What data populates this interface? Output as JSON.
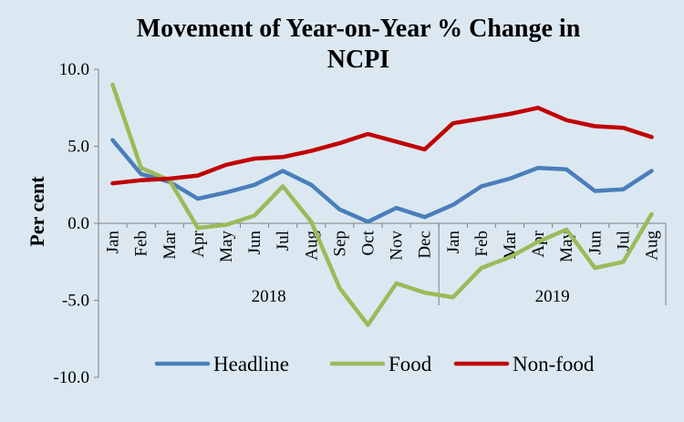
{
  "chart_data": {
    "type": "line",
    "title_lines": [
      "Movement of Year-on-Year % Change in",
      "NCPI"
    ],
    "ylabel": "Per cent",
    "xlabel": "",
    "ylim": [
      -10,
      10
    ],
    "yticks": [
      10,
      5,
      0,
      -5,
      -10
    ],
    "ytick_labels": [
      "10.0",
      "5.0",
      "0.0",
      "-5.0",
      "-10.0"
    ],
    "categories": [
      "Jan",
      "Feb",
      "Mar",
      "Apr",
      "May",
      "Jun",
      "Jul",
      "Aug",
      "Sep",
      "Oct",
      "Nov",
      "Dec",
      "Jan",
      "Feb",
      "Mar",
      "Apr",
      "May",
      "Jun",
      "Jul",
      "Aug"
    ],
    "year_groups": [
      {
        "label": "2018",
        "start": 0,
        "end": 11
      },
      {
        "label": "2019",
        "start": 12,
        "end": 19
      }
    ],
    "series": [
      {
        "name": "Headline",
        "color": "#4a7ebb",
        "values": [
          5.4,
          3.2,
          2.7,
          1.6,
          2.0,
          2.5,
          3.4,
          2.5,
          0.9,
          0.1,
          1.0,
          0.4,
          1.2,
          2.4,
          2.9,
          3.6,
          3.5,
          2.1,
          2.2,
          3.4
        ]
      },
      {
        "name": "Food",
        "color": "#9bbb59",
        "values": [
          9.0,
          3.6,
          2.8,
          -0.3,
          -0.1,
          0.5,
          2.4,
          0.1,
          -4.2,
          -6.6,
          -3.9,
          -4.5,
          -4.8,
          -2.9,
          -2.2,
          -1.2,
          -0.4,
          -2.9,
          -2.5,
          0.6
        ]
      },
      {
        "name": "Non-food",
        "color": "#c00000",
        "values": [
          2.6,
          2.8,
          2.9,
          3.1,
          3.8,
          4.2,
          4.3,
          4.7,
          5.2,
          5.8,
          5.3,
          4.8,
          6.5,
          6.8,
          7.1,
          7.5,
          6.7,
          6.3,
          6.2,
          5.6
        ]
      }
    ],
    "legend_position": "bottom-inside",
    "grid": false
  }
}
